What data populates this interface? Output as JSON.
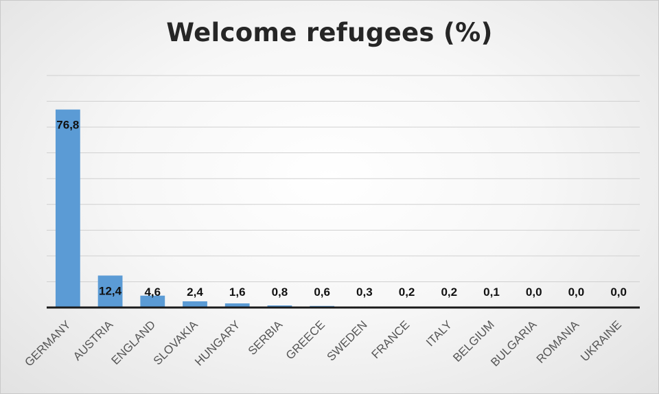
{
  "chart_data": {
    "type": "bar",
    "title": "Welcome refugees (%)",
    "xlabel": "",
    "ylabel": "",
    "ylim": [
      0,
      90
    ],
    "grid": true,
    "categories": [
      "GERMANY",
      "AUSTRIA",
      "ENGLAND",
      "SLOVAKIA",
      "HUNGARY",
      "SERBIA",
      "GREECE",
      "SWEDEN",
      "FRANCE",
      "ITALY",
      "BELGIUM",
      "BULGARIA",
      "ROMANIA",
      "UKRAINE"
    ],
    "values": [
      76.8,
      12.4,
      4.6,
      2.4,
      1.6,
      0.8,
      0.6,
      0.3,
      0.2,
      0.2,
      0.1,
      0.0,
      0.0,
      0.0
    ],
    "data_labels": [
      "76,8",
      "12,4",
      "4,6",
      "2,4",
      "1,6",
      "0,8",
      "0,6",
      "0,3",
      "0,2",
      "0,2",
      "0,1",
      "0,0",
      "0,0",
      "0,0"
    ],
    "colors": {
      "bar": "#5b9bd5",
      "grid": "#d0d0d0",
      "axis": "#1a1a1a",
      "text": "#262626"
    }
  }
}
